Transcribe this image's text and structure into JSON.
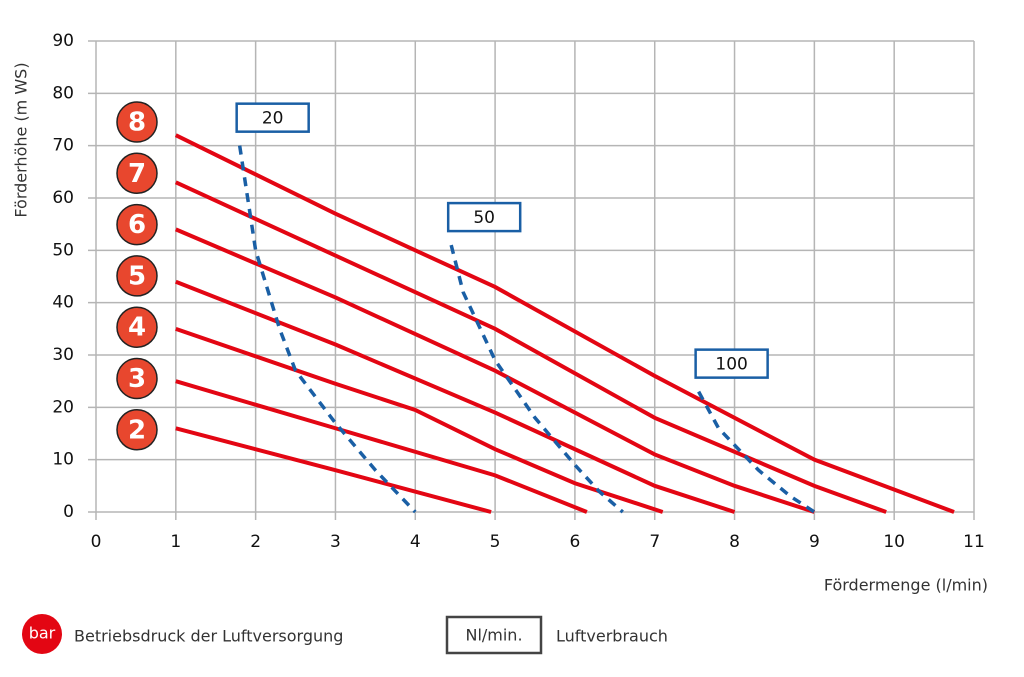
{
  "chart_data": {
    "type": "line",
    "y_label": "Förderhöhe (m WS)",
    "x_label": "Fördermenge (l/min)",
    "xlim": [
      0,
      11
    ],
    "xticks": [
      0,
      1,
      2,
      3,
      4,
      5,
      6,
      7,
      8,
      9,
      10,
      11
    ],
    "ylim": [
      0,
      90
    ],
    "yticks": [
      0,
      10,
      20,
      30,
      40,
      50,
      60,
      70,
      80,
      90
    ],
    "grid": true,
    "series": [
      {
        "name": "8",
        "color": "#e30613",
        "style": "solid",
        "x": [
          1,
          3,
          5,
          7,
          9,
          10.75
        ],
        "values": [
          72,
          57,
          43,
          26,
          10,
          0
        ]
      },
      {
        "name": "7",
        "color": "#e30613",
        "style": "solid",
        "x": [
          1,
          3,
          5,
          7,
          9,
          9.9
        ],
        "values": [
          63,
          49,
          35,
          18,
          5,
          0
        ]
      },
      {
        "name": "6",
        "color": "#e30613",
        "style": "solid",
        "x": [
          1,
          3,
          5,
          7,
          8,
          9
        ],
        "values": [
          54,
          41,
          27,
          11,
          5,
          0
        ]
      },
      {
        "name": "5",
        "color": "#e30613",
        "style": "solid",
        "x": [
          1,
          3,
          5,
          7,
          8
        ],
        "values": [
          44,
          32,
          19,
          5,
          0
        ]
      },
      {
        "name": "4",
        "color": "#e30613",
        "style": "solid",
        "x": [
          1,
          3,
          4,
          5,
          6,
          7.1
        ],
        "values": [
          35,
          24.5,
          19.5,
          12,
          5.5,
          0
        ]
      },
      {
        "name": "3",
        "color": "#e30613",
        "style": "solid",
        "x": [
          1,
          3,
          5,
          6.15
        ],
        "values": [
          25,
          16,
          7,
          0
        ]
      },
      {
        "name": "2",
        "color": "#e30613",
        "style": "solid",
        "x": [
          1,
          3,
          4.95
        ],
        "values": [
          16,
          8,
          0
        ]
      },
      {
        "name": "20",
        "color": "#1a5fa5",
        "style": "dashed",
        "x": [
          1.8,
          2,
          2.3,
          2.5,
          3,
          3.5,
          4
        ],
        "values": [
          70,
          50,
          35,
          27,
          17,
          8,
          0
        ]
      },
      {
        "name": "50",
        "color": "#1a5fa5",
        "style": "dashed",
        "x": [
          4.45,
          4.6,
          5,
          5.5,
          6,
          6.3,
          6.6
        ],
        "values": [
          51,
          42,
          29,
          18,
          9,
          4,
          0
        ]
      },
      {
        "name": "100",
        "color": "#1a5fa5",
        "style": "dashed",
        "x": [
          7.55,
          7.8,
          8.3,
          8.7,
          9
        ],
        "values": [
          23,
          16,
          8,
          3,
          0
        ]
      }
    ],
    "legend": {
      "pressure_badge": "bar",
      "pressure_text": "Betriebsdruck der Luftversorgung",
      "flow_badge": "Nl/min.",
      "flow_text": "Luftverbrauch"
    }
  }
}
